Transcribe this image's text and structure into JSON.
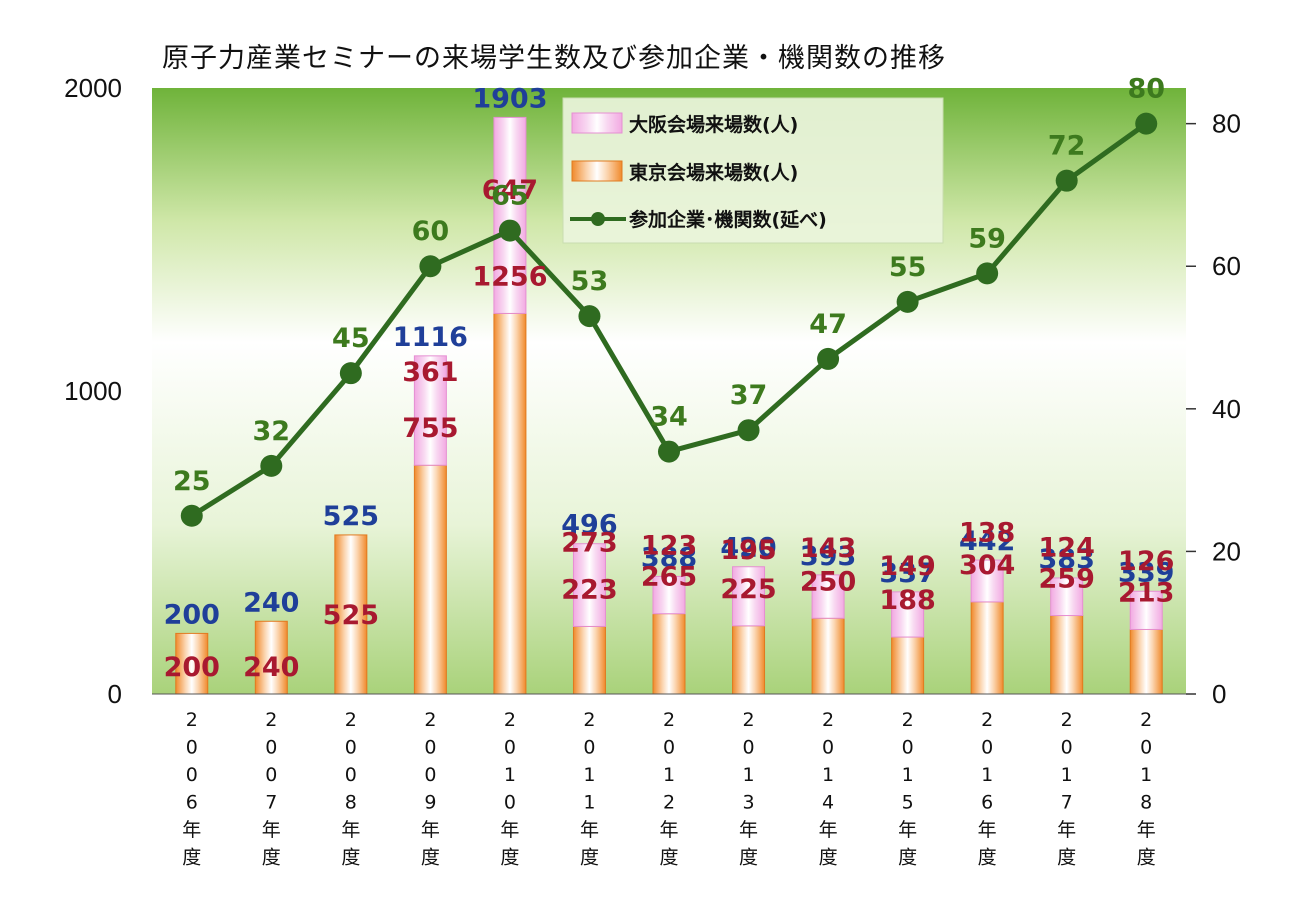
{
  "chart_data": {
    "type": "bar+line",
    "title": "原子力産業セミナーの来場学生数及び参加企業・機関数の推移",
    "categories": [
      "2006年度",
      "2007年度",
      "2008年度",
      "2009年度",
      "2010年度",
      "2011年度",
      "2012年度",
      "2013年度",
      "2014年度",
      "2015年度",
      "2016年度",
      "2017年度",
      "2018年度"
    ],
    "series": [
      {
        "name": "大阪会場来場数(人)",
        "type": "bar-stacked",
        "values": [
          null,
          null,
          null,
          361,
          647,
          273,
          123,
          195,
          143,
          149,
          138,
          124,
          126
        ]
      },
      {
        "name": "東京会場来場数(人)",
        "type": "bar-stacked",
        "values": [
          200,
          240,
          525,
          755,
          1256,
          223,
          265,
          225,
          250,
          188,
          304,
          259,
          213
        ]
      },
      {
        "name": "参加企業･機関数(延べ)",
        "type": "line",
        "axis": "right",
        "values": [
          25,
          32,
          45,
          60,
          65,
          53,
          34,
          37,
          47,
          55,
          59,
          72,
          80
        ]
      }
    ],
    "totals": [
      200,
      240,
      525,
      1116,
      1903,
      496,
      388,
      420,
      393,
      337,
      442,
      383,
      339
    ],
    "y_left": {
      "ticks": [
        "0",
        "1000",
        "2000"
      ],
      "range": [
        0,
        2000
      ]
    },
    "y_right": {
      "ticks": [
        "0",
        "20",
        "40",
        "60",
        "80"
      ],
      "range": [
        0,
        85
      ]
    },
    "legend_position": "top-center",
    "colors": {
      "osaka": "#f2a9e2",
      "tokyo": "#f08a2c",
      "line": "#2f6b20",
      "total_label": "#1f3f99",
      "bar_label": "#a81930",
      "line_label": "#3d7a1e"
    }
  }
}
